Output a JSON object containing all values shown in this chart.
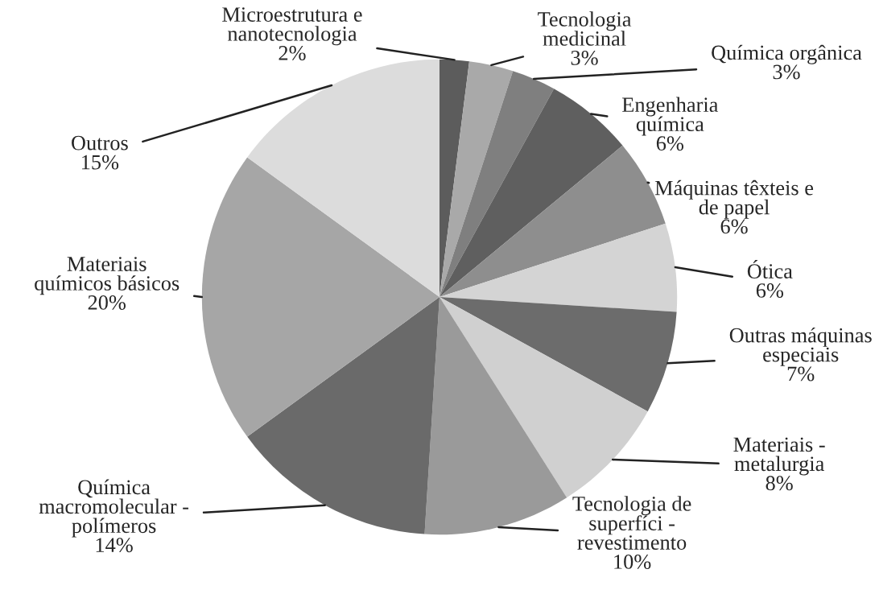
{
  "chart_data": {
    "type": "pie",
    "categories": [
      "Microestrutura e\nnanotecnologia",
      "Tecnologia\nmedicinal",
      "Química orgânica",
      "Engenharia\nquímica",
      "Máquinas têxteis e\nde papel",
      "Ótica",
      "Outras máquinas\nespeciais",
      "Materiais -\nmetalurgia",
      "Tecnologia de\nsuperfíci -\nrevestimento",
      "Química\nmacromolecular -\npolímeros",
      "Materiais\nquímicos básicos",
      "Outros"
    ],
    "values": [
      2,
      3,
      3,
      6,
      6,
      6,
      7,
      8,
      10,
      14,
      20,
      15
    ],
    "value_labels": [
      "2%",
      "3%",
      "3%",
      "6%",
      "6%",
      "6%",
      "7%",
      "8%",
      "10%",
      "14%",
      "20%",
      "15%"
    ],
    "colors": [
      "#5c5c5c",
      "#a9a9a9",
      "#7f7f7f",
      "#5f5f5f",
      "#8e8e8e",
      "#d4d4d4",
      "#6c6c6c",
      "#d0d0d0",
      "#9a9a9a",
      "#6a6a6a",
      "#a6a6a6",
      "#dcdcdc"
    ]
  }
}
